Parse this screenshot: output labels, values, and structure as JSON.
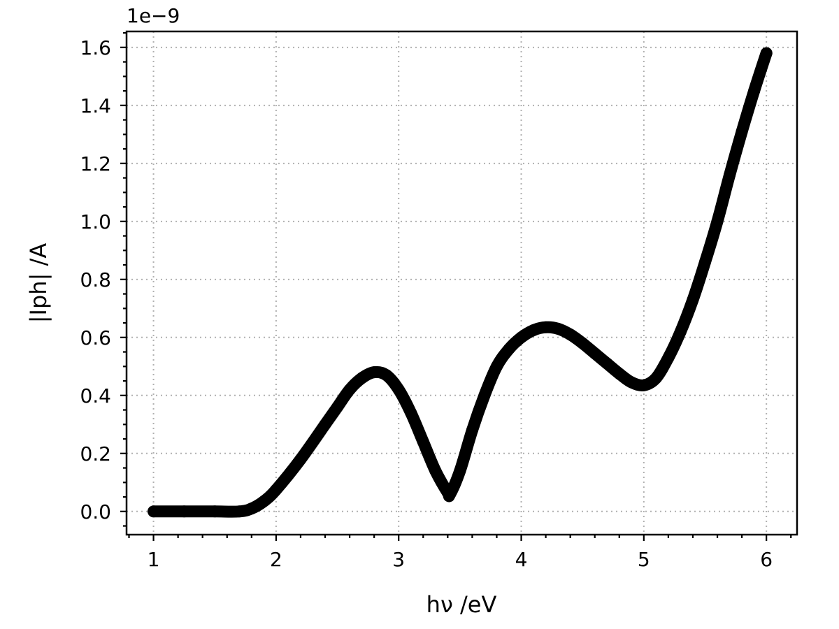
{
  "chart_data": {
    "type": "line",
    "xlabel": "hν /eV",
    "ylabel": "|Iph| /A",
    "offset_text": "1e−9",
    "xlim": [
      0.78,
      6.25
    ],
    "ylim": [
      -0.08,
      1.655
    ],
    "x_ticks": [
      1,
      2,
      3,
      4,
      5,
      6
    ],
    "x_tick_labels": [
      "1",
      "2",
      "3",
      "4",
      "5",
      "6"
    ],
    "y_ticks": [
      0.0,
      0.2,
      0.4,
      0.6,
      0.8,
      1.0,
      1.2,
      1.4,
      1.6
    ],
    "y_tick_labels": [
      "0.0",
      "0.2",
      "0.4",
      "0.6",
      "0.8",
      "1.0",
      "1.2",
      "1.4",
      "1.6"
    ],
    "x_minor_step": 0.2,
    "y_minor_step": 0.05,
    "grid": true,
    "series": [
      {
        "color": "#000000",
        "x": [
          1.0,
          1.25,
          1.5,
          1.7,
          1.8,
          1.9,
          2.0,
          2.2,
          2.4,
          2.5,
          2.6,
          2.7,
          2.8,
          2.9,
          3.0,
          3.1,
          3.2,
          3.3,
          3.4,
          3.42,
          3.5,
          3.6,
          3.7,
          3.8,
          3.9,
          4.0,
          4.1,
          4.2,
          4.3,
          4.4,
          4.5,
          4.6,
          4.7,
          4.8,
          4.9,
          5.0,
          5.1,
          5.2,
          5.3,
          5.4,
          5.5,
          5.6,
          5.7,
          5.8,
          5.9,
          6.0
        ],
        "y": [
          0.0,
          0.0,
          0.0,
          0.0,
          0.01,
          0.035,
          0.075,
          0.18,
          0.3,
          0.36,
          0.42,
          0.46,
          0.48,
          0.47,
          0.42,
          0.34,
          0.24,
          0.14,
          0.065,
          0.06,
          0.14,
          0.28,
          0.4,
          0.5,
          0.56,
          0.6,
          0.625,
          0.635,
          0.63,
          0.61,
          0.58,
          0.545,
          0.51,
          0.475,
          0.445,
          0.435,
          0.46,
          0.53,
          0.62,
          0.73,
          0.86,
          1.0,
          1.16,
          1.31,
          1.45,
          1.58
        ]
      }
    ]
  }
}
